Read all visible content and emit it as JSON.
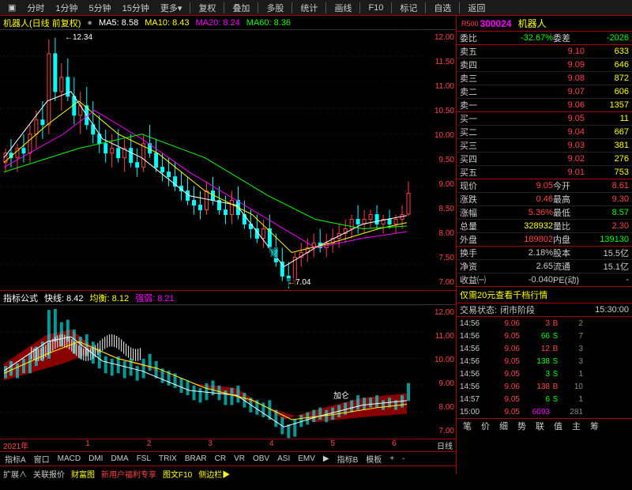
{
  "toolbar": {
    "items": [
      "分时",
      "1分钟",
      "5分钟",
      "15分钟",
      "更多▾"
    ],
    "right_items": [
      "复权",
      "叠加",
      "多股",
      "统计",
      "画线",
      "F10",
      "标记",
      "自选",
      "返回"
    ]
  },
  "stock": {
    "code": "300024",
    "name": "机器人",
    "prefix": "R500"
  },
  "ma_line": {
    "title": "机器人(日线 前复权)",
    "ma5": {
      "label": "MA5:",
      "value": "8.58",
      "color": "#fff"
    },
    "ma10": {
      "label": "MA10:",
      "value": "8.43",
      "color": "#ff0"
    },
    "ma20": {
      "label": "MA20:",
      "value": "8.24",
      "color": "#f0f"
    },
    "ma60": {
      "label": "MA60:",
      "value": "8.36",
      "color": "#0f0"
    }
  },
  "upper_chart": {
    "ylim": [
      7.0,
      12.5
    ],
    "yticks": [
      "12.00",
      "11.50",
      "11.00",
      "10.50",
      "10.00",
      "9.50",
      "9.00",
      "8.50",
      "8.00",
      "7.50",
      "7.00"
    ],
    "high_label": "←12.34",
    "low_label": "←7.04",
    "candles": [
      {
        "x": 5,
        "o": 9.7,
        "h": 10.0,
        "l": 9.5,
        "c": 9.9
      },
      {
        "x": 12,
        "o": 9.9,
        "h": 10.2,
        "l": 9.6,
        "c": 9.8
      },
      {
        "x": 20,
        "o": 9.8,
        "h": 10.1,
        "l": 9.5,
        "c": 10.0
      },
      {
        "x": 28,
        "o": 10.0,
        "h": 10.3,
        "l": 9.7,
        "c": 9.9
      },
      {
        "x": 36,
        "o": 9.9,
        "h": 10.5,
        "l": 9.7,
        "c": 10.3
      },
      {
        "x": 44,
        "o": 10.3,
        "h": 10.8,
        "l": 10.0,
        "c": 10.6
      },
      {
        "x": 52,
        "o": 10.6,
        "h": 11.0,
        "l": 10.2,
        "c": 10.5
      },
      {
        "x": 60,
        "o": 10.5,
        "h": 12.3,
        "l": 10.3,
        "c": 12.0
      },
      {
        "x": 68,
        "o": 12.0,
        "h": 12.34,
        "l": 11.0,
        "c": 11.2
      },
      {
        "x": 76,
        "o": 11.2,
        "h": 11.8,
        "l": 10.8,
        "c": 11.5
      },
      {
        "x": 84,
        "o": 11.5,
        "h": 11.9,
        "l": 11.0,
        "c": 11.1
      },
      {
        "x": 92,
        "o": 11.1,
        "h": 11.5,
        "l": 10.5,
        "c": 10.7
      },
      {
        "x": 100,
        "o": 10.7,
        "h": 11.2,
        "l": 10.3,
        "c": 10.9
      },
      {
        "x": 108,
        "o": 10.9,
        "h": 11.3,
        "l": 10.4,
        "c": 10.5
      },
      {
        "x": 116,
        "o": 10.5,
        "h": 11.0,
        "l": 10.1,
        "c": 10.3
      },
      {
        "x": 124,
        "o": 10.3,
        "h": 10.7,
        "l": 9.9,
        "c": 10.1
      },
      {
        "x": 132,
        "o": 10.1,
        "h": 10.4,
        "l": 9.7,
        "c": 9.9
      },
      {
        "x": 140,
        "o": 9.9,
        "h": 10.3,
        "l": 9.6,
        "c": 10.0
      },
      {
        "x": 148,
        "o": 10.0,
        "h": 10.4,
        "l": 9.7,
        "c": 9.8
      },
      {
        "x": 156,
        "o": 9.8,
        "h": 10.2,
        "l": 9.5,
        "c": 10.0
      },
      {
        "x": 164,
        "o": 10.0,
        "h": 10.3,
        "l": 9.6,
        "c": 9.7
      },
      {
        "x": 172,
        "o": 9.7,
        "h": 10.0,
        "l": 9.4,
        "c": 9.6
      },
      {
        "x": 180,
        "o": 9.6,
        "h": 10.3,
        "l": 9.5,
        "c": 10.1
      },
      {
        "x": 188,
        "o": 10.1,
        "h": 10.5,
        "l": 9.8,
        "c": 9.9
      },
      {
        "x": 196,
        "o": 9.9,
        "h": 10.2,
        "l": 9.5,
        "c": 9.6
      },
      {
        "x": 204,
        "o": 9.6,
        "h": 9.9,
        "l": 9.3,
        "c": 9.5
      },
      {
        "x": 212,
        "o": 9.5,
        "h": 9.8,
        "l": 9.2,
        "c": 9.4
      },
      {
        "x": 220,
        "o": 9.4,
        "h": 9.7,
        "l": 9.1,
        "c": 9.2
      },
      {
        "x": 228,
        "o": 9.2,
        "h": 9.5,
        "l": 8.9,
        "c": 9.1
      },
      {
        "x": 236,
        "o": 9.1,
        "h": 9.4,
        "l": 8.8,
        "c": 8.9
      },
      {
        "x": 244,
        "o": 8.9,
        "h": 9.2,
        "l": 8.6,
        "c": 8.8
      },
      {
        "x": 252,
        "o": 8.8,
        "h": 9.1,
        "l": 8.5,
        "c": 8.7
      },
      {
        "x": 260,
        "o": 8.7,
        "h": 9.3,
        "l": 8.6,
        "c": 9.1
      },
      {
        "x": 268,
        "o": 9.1,
        "h": 9.4,
        "l": 8.8,
        "c": 8.9
      },
      {
        "x": 276,
        "o": 8.9,
        "h": 9.2,
        "l": 8.6,
        "c": 8.7
      },
      {
        "x": 284,
        "o": 8.7,
        "h": 9.0,
        "l": 8.4,
        "c": 8.6
      },
      {
        "x": 292,
        "o": 8.6,
        "h": 9.1,
        "l": 8.4,
        "c": 8.9
      },
      {
        "x": 300,
        "o": 8.9,
        "h": 9.2,
        "l": 8.5,
        "c": 8.6
      },
      {
        "x": 308,
        "o": 8.6,
        "h": 8.9,
        "l": 8.3,
        "c": 8.4
      },
      {
        "x": 316,
        "o": 8.4,
        "h": 8.7,
        "l": 8.1,
        "c": 8.3
      },
      {
        "x": 324,
        "o": 8.3,
        "h": 8.6,
        "l": 8.0,
        "c": 8.1
      },
      {
        "x": 332,
        "o": 8.1,
        "h": 8.5,
        "l": 7.9,
        "c": 8.3
      },
      {
        "x": 340,
        "o": 8.3,
        "h": 8.6,
        "l": 7.8,
        "c": 7.9
      },
      {
        "x": 348,
        "o": 7.9,
        "h": 8.2,
        "l": 7.5,
        "c": 7.6
      },
      {
        "x": 356,
        "o": 7.6,
        "h": 7.9,
        "l": 7.2,
        "c": 7.3
      },
      {
        "x": 364,
        "o": 7.3,
        "h": 7.6,
        "l": 7.04,
        "c": 7.2
      },
      {
        "x": 372,
        "o": 7.2,
        "h": 7.8,
        "l": 7.1,
        "c": 7.7
      },
      {
        "x": 380,
        "o": 7.7,
        "h": 8.0,
        "l": 7.5,
        "c": 7.8
      },
      {
        "x": 388,
        "o": 7.8,
        "h": 8.1,
        "l": 7.6,
        "c": 7.9
      },
      {
        "x": 396,
        "o": 7.9,
        "h": 8.2,
        "l": 7.7,
        "c": 8.0
      },
      {
        "x": 404,
        "o": 8.0,
        "h": 8.3,
        "l": 7.8,
        "c": 7.9
      },
      {
        "x": 412,
        "o": 7.9,
        "h": 8.2,
        "l": 7.7,
        "c": 8.0
      },
      {
        "x": 420,
        "o": 8.0,
        "h": 8.3,
        "l": 7.8,
        "c": 8.1
      },
      {
        "x": 428,
        "o": 8.1,
        "h": 8.4,
        "l": 7.9,
        "c": 8.2
      },
      {
        "x": 436,
        "o": 8.2,
        "h": 8.5,
        "l": 8.0,
        "c": 8.3
      },
      {
        "x": 444,
        "o": 8.3,
        "h": 8.6,
        "l": 8.1,
        "c": 8.5
      },
      {
        "x": 452,
        "o": 8.5,
        "h": 8.8,
        "l": 8.2,
        "c": 8.4
      },
      {
        "x": 460,
        "o": 8.4,
        "h": 8.7,
        "l": 8.2,
        "c": 8.5
      },
      {
        "x": 468,
        "o": 8.5,
        "h": 8.7,
        "l": 8.3,
        "c": 8.6
      },
      {
        "x": 476,
        "o": 8.6,
        "h": 8.8,
        "l": 8.3,
        "c": 8.4
      },
      {
        "x": 484,
        "o": 8.4,
        "h": 8.6,
        "l": 8.2,
        "c": 8.5
      },
      {
        "x": 492,
        "o": 8.5,
        "h": 8.7,
        "l": 8.3,
        "c": 8.4
      },
      {
        "x": 500,
        "o": 8.4,
        "h": 8.6,
        "l": 8.2,
        "c": 8.5
      },
      {
        "x": 508,
        "o": 8.5,
        "h": 8.8,
        "l": 8.3,
        "c": 8.6
      },
      {
        "x": 516,
        "o": 8.61,
        "h": 9.3,
        "l": 8.57,
        "c": 9.05
      }
    ],
    "ma5_line": [
      [
        5,
        9.8
      ],
      [
        60,
        11.0
      ],
      [
        90,
        11.2
      ],
      [
        130,
        10.2
      ],
      [
        180,
        9.8
      ],
      [
        240,
        9.0
      ],
      [
        300,
        8.8
      ],
      [
        360,
        7.5
      ],
      [
        400,
        7.9
      ],
      [
        460,
        8.4
      ],
      [
        516,
        8.58
      ]
    ],
    "ma10_line": [
      [
        5,
        9.7
      ],
      [
        60,
        10.5
      ],
      [
        100,
        11.0
      ],
      [
        150,
        10.3
      ],
      [
        200,
        9.9
      ],
      [
        260,
        9.1
      ],
      [
        320,
        8.6
      ],
      [
        370,
        7.8
      ],
      [
        420,
        8.0
      ],
      [
        480,
        8.3
      ],
      [
        516,
        8.43
      ]
    ],
    "ma20_line": [
      [
        5,
        9.6
      ],
      [
        80,
        10.3
      ],
      [
        120,
        10.8
      ],
      [
        180,
        10.2
      ],
      [
        240,
        9.5
      ],
      [
        300,
        8.9
      ],
      [
        360,
        8.3
      ],
      [
        400,
        7.9
      ],
      [
        460,
        8.1
      ],
      [
        516,
        8.24
      ]
    ],
    "ma60_line": [
      [
        5,
        9.5
      ],
      [
        100,
        10.0
      ],
      [
        180,
        10.3
      ],
      [
        260,
        9.8
      ],
      [
        340,
        9.0
      ],
      [
        400,
        8.5
      ],
      [
        460,
        8.3
      ],
      [
        516,
        8.36
      ]
    ],
    "colors": {
      "up": "#f44",
      "down": "#0ff",
      "ma5": "#fff",
      "ma10": "#ff0",
      "ma20": "#f0f",
      "ma60": "#0f0",
      "grid": "#222",
      "axis_text": "#f44"
    }
  },
  "lower_info": {
    "title": "指标公式",
    "kx": {
      "label": "快线:",
      "value": "8.42"
    },
    "jh": {
      "label": "均衡:",
      "value": "8.12"
    },
    "qr": {
      "label": "强弱:",
      "value": "8.21"
    }
  },
  "lower_chart": {
    "ylim": [
      7.0,
      12.5
    ],
    "yticks": [
      "12.00",
      "11.00",
      "10.00",
      "9.00",
      "8.00",
      "7.00"
    ],
    "ann": "加仑",
    "ann_x": 420,
    "ann_y": 80
  },
  "x_axis": {
    "labels": [
      "2021年",
      "1",
      "2",
      "3",
      "4",
      "5",
      "6"
    ],
    "right": "日线"
  },
  "indicators": {
    "left": [
      "指标A",
      "窗口",
      "MACD",
      "DMI",
      "DMA",
      "FSL",
      "TRIX",
      "BRAR",
      "CR",
      "VR",
      "OBV",
      "ASI",
      "EMV",
      "▶"
    ],
    "right": [
      "指标B",
      "模板",
      "+",
      "-"
    ]
  },
  "bottom": {
    "items": [
      "扩展∧",
      "关联报价",
      "财富图"
    ],
    "right": [
      "新用户福利专享",
      "图文F10",
      "侧边栏▶"
    ]
  },
  "weibi": {
    "label": "委比",
    "value": "-32.67%",
    "label2": "委差",
    "value2": "-2026"
  },
  "asks": [
    {
      "n": "卖五",
      "p": "9.10",
      "v": "633"
    },
    {
      "n": "卖四",
      "p": "9.09",
      "v": "646"
    },
    {
      "n": "卖三",
      "p": "9.08",
      "v": "872"
    },
    {
      "n": "卖二",
      "p": "9.07",
      "v": "606"
    },
    {
      "n": "卖一",
      "p": "9.06",
      "v": "1357"
    }
  ],
  "bids": [
    {
      "n": "买一",
      "p": "9.05",
      "v": "11"
    },
    {
      "n": "买二",
      "p": "9.04",
      "v": "667"
    },
    {
      "n": "买三",
      "p": "9.03",
      "v": "381"
    },
    {
      "n": "买四",
      "p": "9.02",
      "v": "276"
    },
    {
      "n": "买五",
      "p": "9.01",
      "v": "753"
    }
  ],
  "quote": [
    {
      "l1": "现价",
      "v1": "9.05",
      "c1": "#f44",
      "l2": "今开",
      "v2": "8.61",
      "c2": "#f44"
    },
    {
      "l1": "涨跌",
      "v1": "0.46",
      "c1": "#f44",
      "l2": "最高",
      "v2": "9.30",
      "c2": "#f44"
    },
    {
      "l1": "涨幅",
      "v1": "5.36%",
      "c1": "#f44",
      "l2": "最低",
      "v2": "8.57",
      "c2": "#0f0"
    },
    {
      "l1": "总量",
      "v1": "328932",
      "c1": "#ff0",
      "l2": "量比",
      "v2": "2.30",
      "c2": "#f44"
    },
    {
      "l1": "外盘",
      "v1": "189802",
      "c1": "#f44",
      "l2": "内盘",
      "v2": "139130",
      "c2": "#0f0"
    },
    {
      "l1": "换手",
      "v1": "2.18%",
      "c1": "#ccc",
      "l2": "股本",
      "v2": "15.5亿",
      "c2": "#ccc"
    },
    {
      "l1": "净资",
      "v1": "2.65",
      "c1": "#ccc",
      "l2": "流通",
      "v2": "15.1亿",
      "c2": "#ccc"
    },
    {
      "l1": "收益㈠",
      "v1": "-0.040",
      "c1": "#ccc",
      "l2": "PE(动)",
      "v2": "-",
      "c2": "#ccc"
    }
  ],
  "promo": "仅需20元查看千档行情",
  "trade_status": {
    "label": "交易状态:",
    "value": "闭市阶段",
    "time": "15:30:00"
  },
  "trades": [
    {
      "t": "14:56",
      "p": "9.06",
      "v": "3",
      "d": "B",
      "c": "#f44",
      "s": "2"
    },
    {
      "t": "14:56",
      "p": "9.05",
      "v": "66",
      "d": "S",
      "c": "#0f0",
      "s": "7"
    },
    {
      "t": "14:56",
      "p": "9.06",
      "v": "12",
      "d": "B",
      "c": "#f44",
      "s": "3"
    },
    {
      "t": "14:56",
      "p": "9.05",
      "v": "138",
      "d": "S",
      "c": "#0f0",
      "s": "3"
    },
    {
      "t": "14:56",
      "p": "9.05",
      "v": "3",
      "d": "S",
      "c": "#0f0",
      "s": "1"
    },
    {
      "t": "14:56",
      "p": "9.06",
      "v": "138",
      "d": "B",
      "c": "#f44",
      "s": "10"
    },
    {
      "t": "14:57",
      "p": "9.05",
      "v": "6",
      "d": "S",
      "c": "#0f0",
      "s": "1"
    },
    {
      "t": "15:00",
      "p": "9.05",
      "v": "6093",
      "d": "",
      "c": "#f0f",
      "s": "281"
    }
  ],
  "bottom_tabs": [
    "笔",
    "价",
    "细",
    "势",
    "联",
    "值",
    "主",
    "筹"
  ]
}
